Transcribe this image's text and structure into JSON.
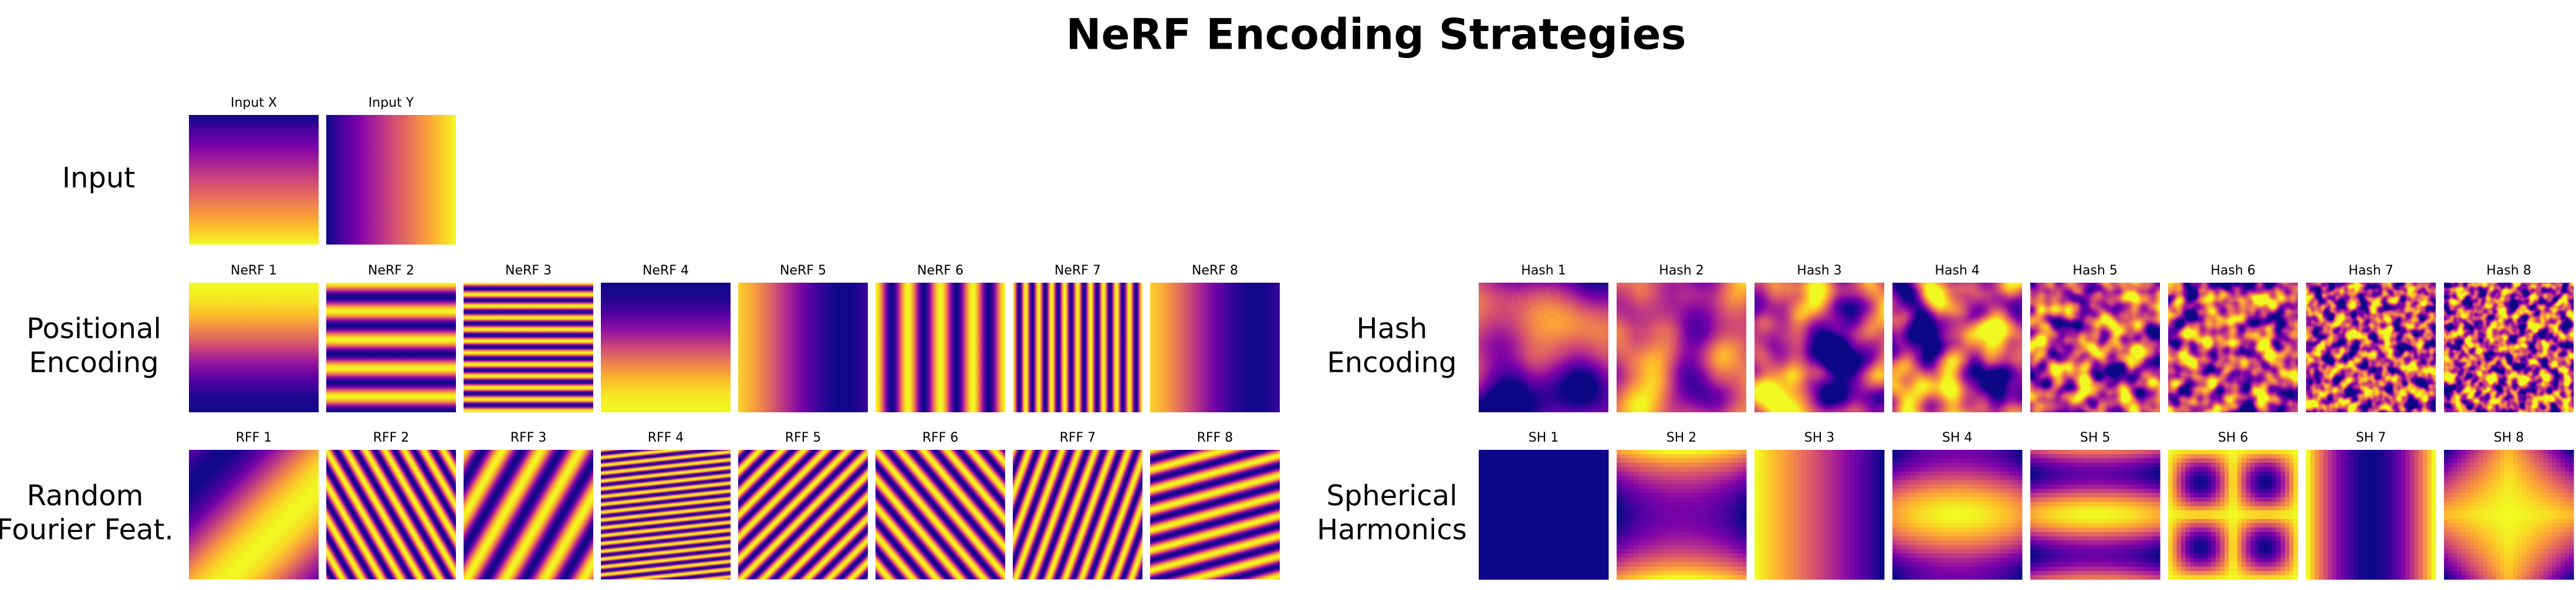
{
  "title": "NeRF Encoding Strategies",
  "panels": [
    {
      "label": [
        "Input"
      ],
      "tiles": [
        "Input X",
        "Input Y"
      ]
    },
    {
      "label": [
        "Positional",
        "Encoding"
      ],
      "tiles": [
        "NeRF 1",
        "NeRF 2",
        "NeRF 3",
        "NeRF 4",
        "NeRF 5",
        "NeRF 6",
        "NeRF 7",
        "NeRF 8"
      ]
    },
    {
      "label": [
        "Random",
        "Fourier Feat."
      ],
      "tiles": [
        "RFF 1",
        "RFF 2",
        "RFF 3",
        "RFF 4",
        "RFF 5",
        "RFF 6",
        "RFF 7",
        "RFF 8"
      ]
    },
    {
      "label": [
        "Hash",
        "Encoding"
      ],
      "tiles": [
        "Hash 1",
        "Hash 2",
        "Hash 3",
        "Hash 4",
        "Hash 5",
        "Hash 6",
        "Hash 7",
        "Hash 8"
      ]
    },
    {
      "label": [
        "Spherical",
        "Harmonics"
      ],
      "tiles": [
        "SH 1",
        "SH 2",
        "SH 3",
        "SH 4",
        "SH 5",
        "SH 6",
        "SH 7",
        "SH 8"
      ]
    }
  ]
}
